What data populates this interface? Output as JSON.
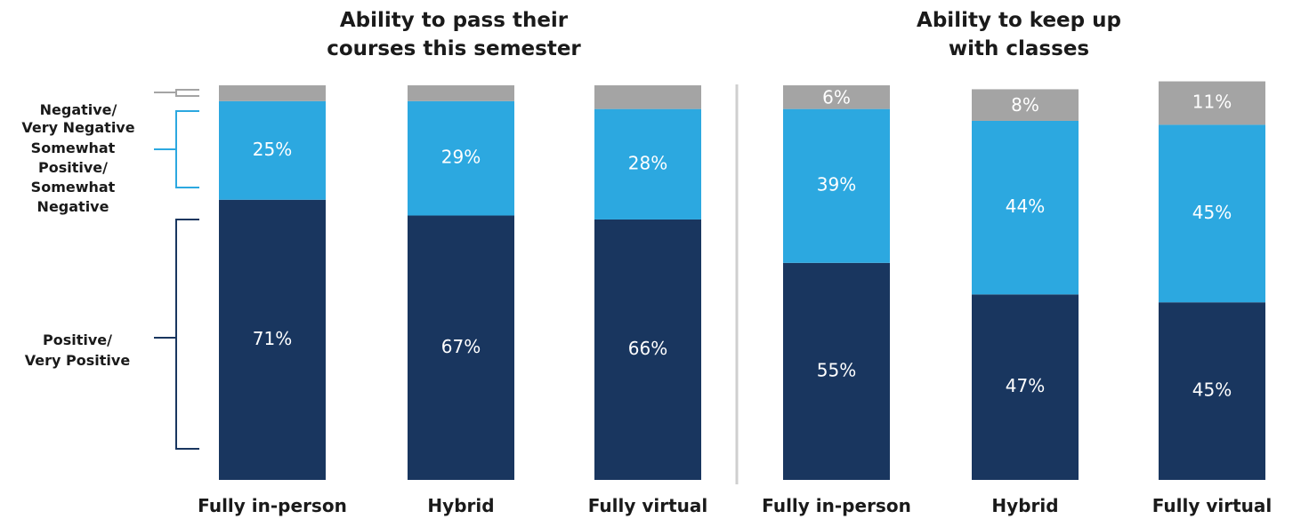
{
  "colors": {
    "positive": "#19365f",
    "somewhat": "#2ca8e0",
    "negative": "#a4a4a4",
    "divider": "#cfcfcf",
    "text": "#1a1a1a"
  },
  "legend": {
    "negative": [
      "Negative/",
      "Very Negative"
    ],
    "somewhat": [
      "Somewhat",
      "Positive/",
      "Somewhat",
      "Negative"
    ],
    "positive": [
      "Positive/",
      "Very Positive"
    ]
  },
  "chart_data": [
    {
      "type": "bar",
      "stacked": true,
      "title": [
        "Ability to pass their",
        "courses this semester"
      ],
      "categories": [
        "Fully in-person",
        "Hybrid",
        "Fully virtual"
      ],
      "series": [
        {
          "name": "Positive/Very Positive",
          "values": [
            71,
            67,
            66
          ],
          "labels": [
            "71%",
            "67%",
            "66%"
          ]
        },
        {
          "name": "Somewhat Positive/Somewhat Negative",
          "values": [
            25,
            29,
            28
          ],
          "labels": [
            "25%",
            "29%",
            "28%"
          ]
        },
        {
          "name": "Negative/Very Negative",
          "values": [
            4,
            4,
            6
          ],
          "labels": [
            "",
            "",
            ""
          ]
        }
      ],
      "ylim": [
        0,
        100
      ]
    },
    {
      "type": "bar",
      "stacked": true,
      "title": [
        "Ability to keep up",
        "with classes"
      ],
      "categories": [
        "Fully in-person",
        "Hybrid",
        "Fully virtual"
      ],
      "series": [
        {
          "name": "Positive/Very Positive",
          "values": [
            55,
            47,
            45
          ],
          "labels": [
            "55%",
            "47%",
            "45%"
          ]
        },
        {
          "name": "Somewhat Positive/Somewhat Negative",
          "values": [
            39,
            44,
            45
          ],
          "labels": [
            "39%",
            "44%",
            "45%"
          ]
        },
        {
          "name": "Negative/Very Negative",
          "values": [
            6,
            8,
            11
          ],
          "labels": [
            "6%",
            "8%",
            "11%"
          ]
        }
      ],
      "ylim": [
        0,
        100
      ]
    }
  ]
}
